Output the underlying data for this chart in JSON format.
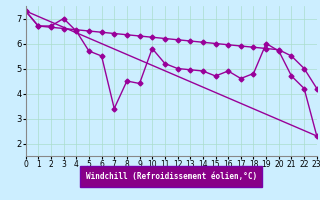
{
  "xlabel": "Windchill (Refroidissement éolien,°C)",
  "background_color": "#cceeff",
  "line_color": "#990099",
  "grid_color": "#aaddcc",
  "xlim": [
    0,
    23
  ],
  "ylim": [
    1.5,
    7.5
  ],
  "yticks": [
    2,
    3,
    4,
    5,
    6,
    7
  ],
  "xticks": [
    0,
    1,
    2,
    3,
    4,
    5,
    6,
    7,
    8,
    9,
    10,
    11,
    12,
    13,
    14,
    15,
    16,
    17,
    18,
    19,
    20,
    21,
    22,
    23
  ],
  "line1": {
    "x": [
      0,
      1,
      2,
      3,
      4,
      5,
      6,
      7,
      8,
      9,
      10,
      11,
      12,
      13,
      14,
      15,
      16,
      17,
      18,
      19,
      20,
      21,
      22,
      23
    ],
    "y": [
      7.3,
      6.7,
      6.7,
      7.0,
      6.5,
      5.7,
      5.5,
      3.4,
      4.5,
      4.4,
      5.8,
      5.2,
      5.0,
      4.95,
      4.9,
      4.7,
      4.9,
      4.6,
      4.8,
      6.0,
      5.7,
      4.7,
      4.2,
      2.3
    ]
  },
  "line2": {
    "x": [
      0,
      1,
      2,
      3,
      4,
      5,
      6,
      7,
      8,
      9,
      10,
      11,
      12,
      13,
      14,
      15,
      16,
      17,
      18,
      19,
      20,
      21,
      22,
      23
    ],
    "y": [
      7.3,
      6.7,
      6.65,
      6.6,
      6.55,
      6.5,
      6.45,
      6.4,
      6.35,
      6.3,
      6.25,
      6.2,
      6.15,
      6.1,
      6.05,
      6.0,
      5.95,
      5.9,
      5.85,
      5.8,
      5.75,
      5.5,
      5.0,
      4.2
    ]
  },
  "line3": {
    "x": [
      0,
      23
    ],
    "y": [
      7.3,
      2.3
    ]
  }
}
